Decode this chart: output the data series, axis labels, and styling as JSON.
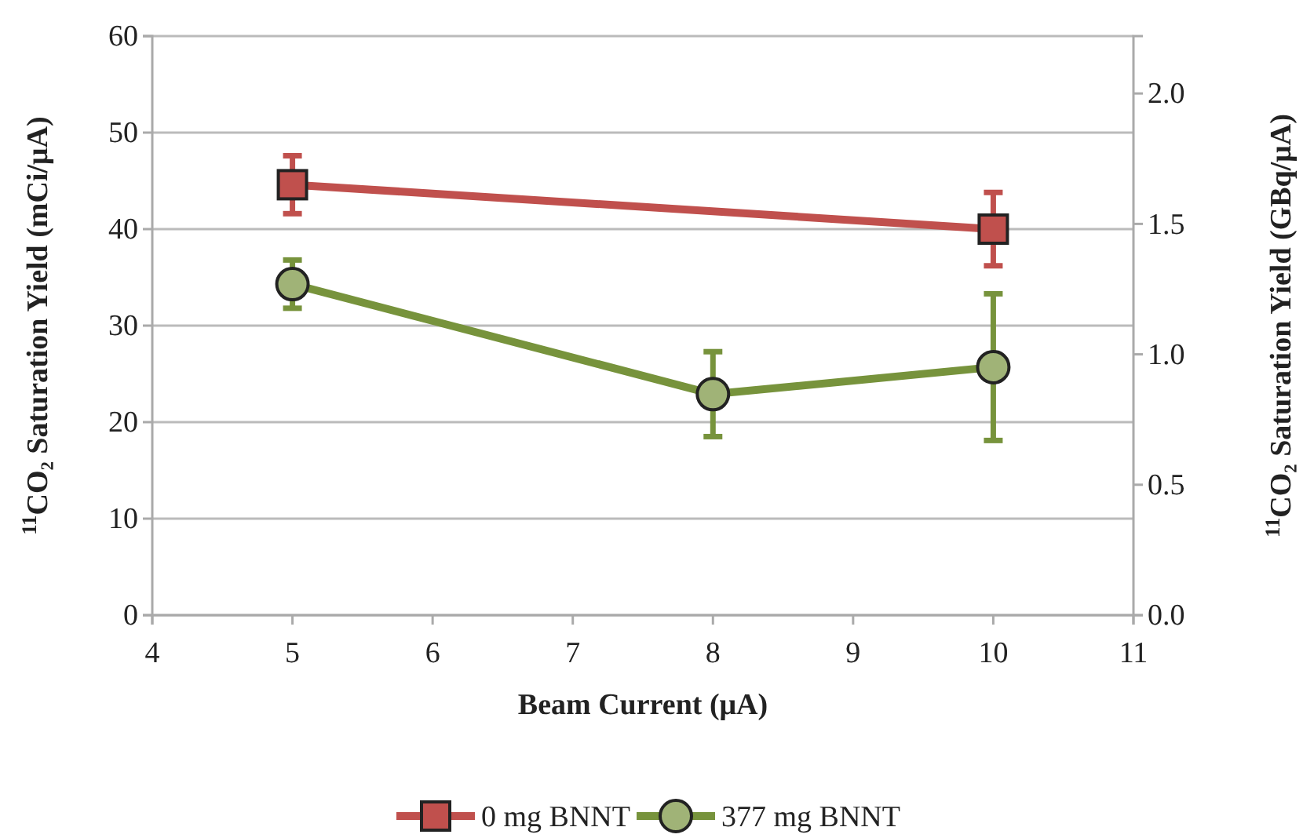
{
  "chart_data": {
    "type": "line",
    "xlabel": "Beam Current (μA)",
    "ylabel": "$^{11}$CO₂ Saturation Yield (mCi/μA)",
    "y2label": "$^{11}$CO₂ Saturation Yield (GBq/μA)",
    "xlim": [
      4,
      11
    ],
    "xticks": [
      4,
      5,
      6,
      7,
      8,
      9,
      10,
      11
    ],
    "ylim": [
      0,
      60
    ],
    "yticks": [
      0,
      10,
      20,
      30,
      40,
      50,
      60
    ],
    "y2lim": [
      0,
      2.22
    ],
    "y2ticks": [
      {
        "value": 0,
        "label": "0.0"
      },
      {
        "value": 0.5,
        "label": "0.5"
      },
      {
        "value": 1,
        "label": "1.0"
      },
      {
        "value": 1.5,
        "label": "1.5"
      },
      {
        "value": 2,
        "label": "2.0"
      }
    ],
    "grid": "y",
    "legend": "bottom",
    "line_style": "solid",
    "series": [
      {
        "name": "0 mg BNNT",
        "color": "#c0504d",
        "marker": "square",
        "x": [
          5,
          10
        ],
        "values": [
          44.6,
          40
        ],
        "errors": [
          3,
          3.8
        ]
      },
      {
        "name": "377 mg BNNT",
        "color": "#77933c",
        "marker": "circle",
        "x": [
          5,
          8,
          10
        ],
        "values": [
          34.3,
          22.9,
          25.7
        ],
        "errors": [
          2.5,
          4.4,
          7.6
        ]
      }
    ]
  }
}
